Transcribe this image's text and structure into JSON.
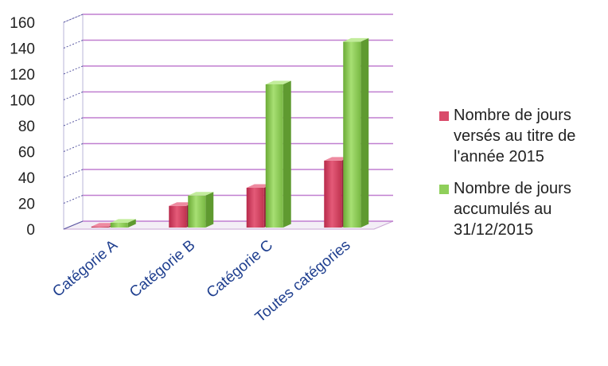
{
  "chart_data": {
    "type": "bar",
    "categories": [
      "Catégorie A",
      "Catégorie B",
      "Catégorie C",
      "Toutes catégories"
    ],
    "series": [
      {
        "name": "Nombre de jours versés au titre de l'année 2015",
        "values": [
          2,
          18,
          32,
          53
        ],
        "color": "#d94b6a"
      },
      {
        "name": "Nombre de jours accumulés au 31/12/2015",
        "values": [
          5,
          26,
          112,
          145
        ],
        "color": "#8fcf5a"
      }
    ],
    "y_ticks": [
      "0",
      "20",
      "40",
      "60",
      "80",
      "100",
      "120",
      "140",
      "160"
    ],
    "ylim": [
      0,
      160
    ],
    "grid": true,
    "legend_position": "right",
    "title": "",
    "xlabel": "",
    "ylabel": ""
  }
}
